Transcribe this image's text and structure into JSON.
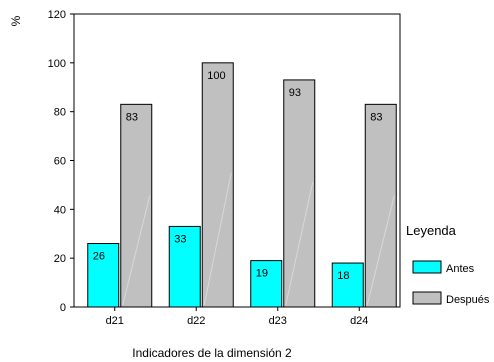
{
  "chart_data": {
    "type": "bar",
    "categories": [
      "d21",
      "d22",
      "d23",
      "d24"
    ],
    "series": [
      {
        "name": "Antes",
        "values": [
          26,
          33,
          19,
          18
        ],
        "color": "#00ffff"
      },
      {
        "name": "Después",
        "values": [
          83,
          100,
          93,
          83
        ],
        "color": "#c0c0c0"
      }
    ],
    "data_labels": [
      [
        "26",
        "33",
        "19",
        "18"
      ],
      [
        "83",
        "100",
        "93",
        "83"
      ]
    ],
    "ylim": [
      0,
      120
    ],
    "yticks": [
      0,
      20,
      40,
      60,
      80,
      100,
      120
    ],
    "xlabel": "Indicadores de la dimensión 2",
    "ylabel": "%",
    "legend": {
      "title": "Leyenda",
      "placement": "right"
    },
    "grid": false
  }
}
